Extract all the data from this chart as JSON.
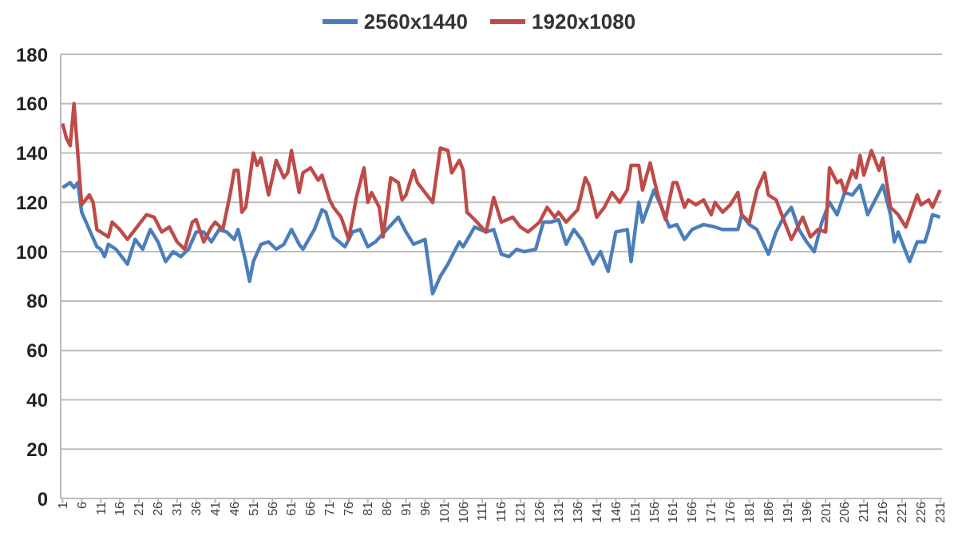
{
  "chart_data": {
    "type": "line",
    "legend": "top",
    "grid": "y",
    "marker": "none",
    "line_style": "solid",
    "xlim": [
      0.5,
      231.5
    ],
    "xticks": [
      1,
      6,
      11,
      16,
      21,
      26,
      31,
      36,
      41,
      46,
      51,
      56,
      61,
      66,
      71,
      76,
      81,
      86,
      91,
      96,
      101,
      106,
      111,
      116,
      121,
      126,
      131,
      136,
      141,
      146,
      151,
      156,
      161,
      166,
      171,
      176,
      181,
      186,
      191,
      196,
      201,
      206,
      211,
      216,
      221,
      226,
      231
    ],
    "ylim": [
      0,
      180
    ],
    "yticks": [
      0,
      20,
      40,
      60,
      80,
      100,
      120,
      140,
      160,
      180
    ],
    "series": [
      {
        "name": "2560x1440",
        "color": "#4a7ebb",
        "x": [
          1,
          3,
          4,
          5,
          6,
          8,
          10,
          11,
          12,
          13,
          15,
          18,
          20,
          22,
          24,
          26,
          28,
          30,
          32,
          34,
          36,
          38,
          40,
          42,
          44,
          46,
          47,
          49,
          50,
          51,
          53,
          55,
          57,
          59,
          61,
          63,
          64,
          67,
          69,
          70,
          72,
          75,
          77,
          79,
          81,
          83,
          86,
          89,
          91,
          93,
          96,
          98,
          100,
          102,
          105,
          106,
          109,
          112,
          114,
          116,
          118,
          120,
          122,
          125,
          127,
          129,
          131,
          133,
          135,
          137,
          140,
          142,
          144,
          145,
          146,
          149,
          150,
          152,
          153,
          156,
          158,
          160,
          162,
          164,
          166,
          169,
          172,
          174,
          178,
          179,
          181,
          183,
          186,
          188,
          190,
          192,
          194,
          196,
          198,
          200,
          202,
          204,
          206,
          208,
          210,
          212,
          214,
          216,
          218,
          219,
          220,
          222,
          223,
          225,
          227,
          228,
          229,
          231
        ],
        "values": [
          126,
          128,
          126,
          128,
          116,
          109,
          102,
          101,
          98,
          103,
          101,
          95,
          105,
          101,
          109,
          104,
          96,
          100,
          98,
          101,
          108,
          108,
          104,
          109,
          108,
          105,
          109,
          96,
          88,
          96,
          103,
          104,
          101,
          103,
          109,
          103,
          101,
          109,
          117,
          116,
          106,
          102,
          108,
          109,
          102,
          104,
          109,
          114,
          108,
          103,
          105,
          83,
          90,
          95,
          104,
          102,
          110,
          108,
          109,
          99,
          98,
          101,
          100,
          101,
          112,
          112,
          113,
          103,
          109,
          105,
          95,
          100,
          92,
          100,
          108,
          109,
          96,
          120,
          112,
          125,
          118,
          110,
          111,
          105,
          109,
          111,
          110,
          109,
          109,
          115,
          111,
          109,
          99,
          108,
          114,
          118,
          109,
          104,
          100,
          112,
          120,
          115,
          124,
          123,
          127,
          115,
          121,
          127,
          115,
          104,
          108,
          100,
          96,
          104,
          104,
          109,
          115,
          114
        ]
      },
      {
        "name": "1920x1080",
        "color": "#be4b48",
        "x": [
          1,
          2,
          3,
          4,
          6,
          8,
          9,
          10,
          13,
          14,
          16,
          18,
          20,
          23,
          25,
          27,
          29,
          31,
          33,
          35,
          36,
          38,
          40,
          41,
          43,
          45,
          46,
          47,
          48,
          49,
          51,
          52,
          53,
          55,
          57,
          59,
          60,
          61,
          63,
          64,
          66,
          68,
          69,
          71,
          72,
          74,
          76,
          78,
          80,
          81,
          82,
          84,
          85,
          87,
          89,
          90,
          91,
          93,
          94,
          96,
          98,
          100,
          102,
          103,
          105,
          106,
          107,
          109,
          112,
          114,
          116,
          119,
          121,
          123,
          126,
          128,
          130,
          131,
          133,
          136,
          138,
          139,
          141,
          143,
          145,
          147,
          149,
          150,
          152,
          153,
          155,
          157,
          159,
          161,
          162,
          164,
          165,
          167,
          169,
          171,
          172,
          174,
          176,
          178,
          179,
          181,
          183,
          185,
          186,
          188,
          190,
          192,
          194,
          195,
          197,
          199,
          201,
          202,
          204,
          205,
          206,
          208,
          209,
          210,
          211,
          213,
          215,
          216,
          218,
          220,
          222,
          225,
          226,
          228,
          229,
          231
        ],
        "values": [
          152,
          146,
          143,
          160,
          119,
          123,
          120,
          109,
          106,
          112,
          109,
          105,
          109,
          115,
          114,
          108,
          110,
          104,
          101,
          112,
          113,
          104,
          110,
          112,
          109,
          124,
          133,
          133,
          116,
          118,
          140,
          135,
          138,
          123,
          137,
          130,
          132,
          141,
          124,
          132,
          134,
          129,
          131,
          121,
          118,
          114,
          105,
          122,
          134,
          120,
          124,
          118,
          106,
          130,
          128,
          121,
          123,
          133,
          128,
          124,
          120,
          142,
          141,
          132,
          137,
          133,
          116,
          113,
          108,
          122,
          112,
          114,
          110,
          108,
          112,
          118,
          114,
          116,
          112,
          117,
          130,
          127,
          114,
          118,
          124,
          120,
          125,
          135,
          135,
          125,
          136,
          123,
          113,
          128,
          128,
          118,
          121,
          119,
          121,
          115,
          120,
          116,
          119,
          124,
          115,
          112,
          125,
          132,
          123,
          121,
          113,
          105,
          111,
          114,
          106,
          109,
          108,
          134,
          128,
          129,
          124,
          133,
          130,
          139,
          131,
          141,
          133,
          138,
          118,
          115,
          110,
          123,
          119,
          121,
          118,
          125
        ]
      }
    ]
  }
}
